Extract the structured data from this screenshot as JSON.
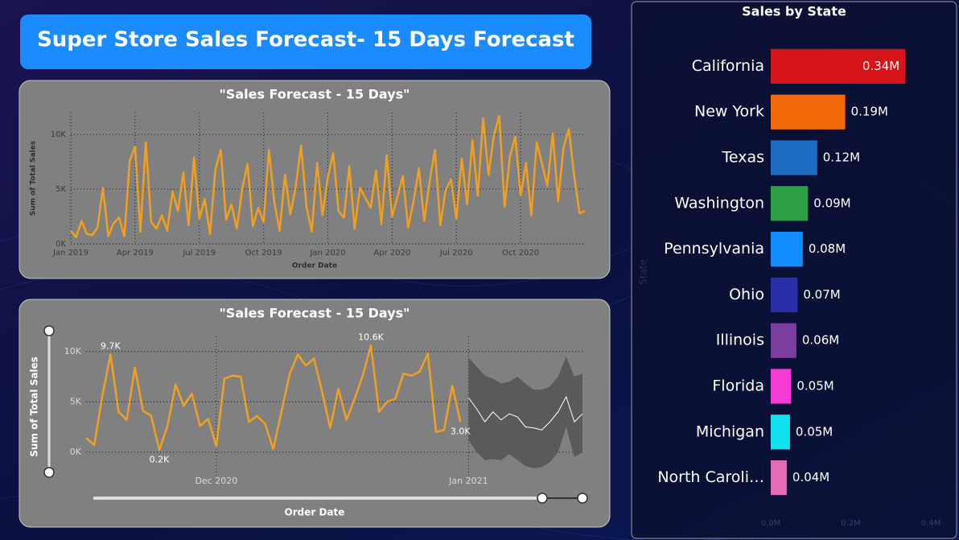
{
  "header": {
    "title": "Super Store Sales Forecast- 15 Days Forecast"
  },
  "chart_data": [
    {
      "type": "line",
      "title": "\"Sales Forecast - 15 Days\"",
      "xlabel": "Order Date",
      "ylabel": "Sum of Total Sales",
      "grid": true,
      "xlim": [
        0,
        24
      ],
      "ylim": [
        0,
        12000
      ],
      "xticks": [
        {
          "value": 0,
          "label": "Jan 2019"
        },
        {
          "value": 3,
          "label": "Apr 2019"
        },
        {
          "value": 6,
          "label": "Jul 2019"
        },
        {
          "value": 9,
          "label": "Oct 2019"
        },
        {
          "value": 12,
          "label": "Jan 2020"
        },
        {
          "value": 15,
          "label": "Apr 2020"
        },
        {
          "value": 18,
          "label": "Jul 2020"
        },
        {
          "value": 21,
          "label": "Oct 2020"
        }
      ],
      "yticks": [
        {
          "value": 0,
          "label": "0K"
        },
        {
          "value": 5000,
          "label": "5K"
        },
        {
          "value": 10000,
          "label": "10K"
        }
      ],
      "x": [
        0,
        0.25,
        0.5,
        0.75,
        1,
        1.25,
        1.5,
        1.75,
        2,
        2.25,
        2.5,
        2.75,
        3,
        3.25,
        3.5,
        3.75,
        4,
        4.25,
        4.5,
        4.75,
        5,
        5.25,
        5.5,
        5.75,
        6,
        6.25,
        6.5,
        6.75,
        7,
        7.25,
        7.5,
        7.75,
        8,
        8.25,
        8.5,
        8.75,
        9,
        9.25,
        9.5,
        9.75,
        10,
        10.25,
        10.5,
        10.75,
        11,
        11.25,
        11.5,
        11.75,
        12,
        12.25,
        12.5,
        12.75,
        13,
        13.25,
        13.5,
        13.75,
        14,
        14.25,
        14.5,
        14.75,
        15,
        15.25,
        15.5,
        15.75,
        16,
        16.25,
        16.5,
        16.75,
        17,
        17.25,
        17.5,
        17.75,
        18,
        18.25,
        18.5,
        18.75,
        19,
        19.25,
        19.5,
        19.75,
        20,
        20.25,
        20.5,
        20.75,
        21,
        21.25,
        21.5,
        21.75,
        22,
        22.25,
        22.5,
        22.75,
        23,
        23.25,
        23.5,
        23.75,
        24
      ],
      "series": [
        {
          "color": "#f0a020",
          "values": [
            1200,
            600,
            2100,
            900,
            800,
            1500,
            5100,
            700,
            1900,
            2400,
            700,
            7600,
            8900,
            1100,
            9300,
            2000,
            1400,
            2600,
            1200,
            4800,
            3000,
            6500,
            1700,
            7900,
            2300,
            4100,
            900,
            6800,
            8600,
            2200,
            3600,
            1400,
            5000,
            7300,
            1600,
            3300,
            2000,
            8600,
            3800,
            1200,
            6300,
            2700,
            5200,
            9000,
            3400,
            1100,
            7400,
            2600,
            6100,
            8300,
            3000,
            2400,
            7100,
            1400,
            5100,
            4200,
            3300,
            6700,
            1800,
            8100,
            2500,
            4300,
            6200,
            1500,
            3900,
            6900,
            2100,
            5700,
            8600,
            1700,
            4900,
            5900,
            2300,
            7800,
            3600,
            9500,
            4400,
            11500,
            6300,
            9900,
            11700,
            3400,
            8000,
            9800,
            4400,
            7400,
            2600,
            9300,
            7300,
            5300,
            10100,
            3900,
            8800,
            10500,
            6200,
            2800,
            3000
          ]
        }
      ]
    },
    {
      "type": "line",
      "title": "\"Sales Forecast - 15 Days\"",
      "xlabel": "Order Date",
      "ylabel": "Sum of Total Sales",
      "grid": true,
      "xlim": [
        -16,
        45
      ],
      "ylim": [
        -2500,
        11500
      ],
      "xticks": [
        {
          "value": 0,
          "label": "Dec 2020"
        },
        {
          "value": 31,
          "label": "Jan 2021"
        }
      ],
      "yticks": [
        {
          "value": 0,
          "label": "0K"
        },
        {
          "value": 5000,
          "label": "5K"
        },
        {
          "value": 10000,
          "label": "10K"
        }
      ],
      "series": [
        {
          "color": "#555555",
          "x": [
            31,
            32,
            33,
            34,
            35,
            36,
            37,
            38,
            39,
            40,
            41,
            42,
            43,
            44,
            45
          ],
          "upper": [
            9400,
            8500,
            7600,
            7300,
            6800,
            7000,
            7500,
            6800,
            6200,
            6200,
            6500,
            7500,
            9500,
            7500,
            7800
          ],
          "lower": [
            1200,
            0,
            -800,
            -700,
            -800,
            -200,
            -800,
            -1400,
            -1600,
            -1500,
            -1000,
            0,
            2500,
            -500,
            0
          ]
        },
        {
          "color": "#f0a020",
          "x": [
            -16,
            -15,
            -14,
            -13,
            -12,
            -11,
            -10,
            -9,
            -8,
            -7,
            -6,
            -5,
            -4,
            -3,
            -2,
            -1,
            0,
            1,
            2,
            3,
            4,
            5,
            6,
            7,
            8,
            9,
            10,
            11,
            12,
            13,
            14,
            15,
            16,
            17,
            18,
            19,
            20,
            21,
            22,
            23,
            24,
            25,
            26,
            27,
            28,
            29,
            30
          ],
          "values": [
            1400,
            700,
            5600,
            9700,
            4000,
            3200,
            8400,
            4100,
            3600,
            200,
            2600,
            6700,
            4600,
            5800,
            2600,
            3300,
            600,
            7300,
            7600,
            7500,
            3000,
            3600,
            2800,
            300,
            4000,
            7700,
            9700,
            8600,
            9300,
            6000,
            2400,
            6300,
            3200,
            5300,
            7600,
            10600,
            4000,
            5000,
            5300,
            7800,
            7600,
            8000,
            9800,
            2000,
            2200,
            6600,
            3000
          ],
          "value_labels": [
            null,
            null,
            null,
            "9.7K",
            null,
            null,
            null,
            null,
            null,
            "0.2K",
            null,
            null,
            null,
            null,
            null,
            null,
            null,
            null,
            null,
            null,
            null,
            null,
            null,
            null,
            null,
            null,
            null,
            null,
            null,
            null,
            null,
            null,
            null,
            null,
            null,
            "10.6K",
            null,
            null,
            null,
            null,
            null,
            null,
            null,
            null,
            null,
            null,
            "3.0K"
          ]
        },
        {
          "color": "#ffffff",
          "x": [
            31,
            32,
            33,
            34,
            35,
            36,
            37,
            38,
            39,
            40,
            41,
            42,
            43,
            44,
            45
          ],
          "values": [
            5400,
            4300,
            3000,
            4000,
            3200,
            3800,
            3500,
            2500,
            2400,
            2200,
            3000,
            4000,
            5500,
            3000,
            3800
          ]
        }
      ]
    },
    {
      "type": "bar",
      "orientation": "horizontal",
      "title": "Sales by State",
      "ylabel": "State",
      "categories": [
        "California",
        "New York",
        "Texas",
        "Washington",
        "Pennsylvania",
        "Ohio",
        "Illinois",
        "Florida",
        "Michigan",
        "North Caroli…"
      ],
      "values": [
        336000,
        186000,
        116000,
        93000,
        80000,
        67000,
        64000,
        51000,
        48000,
        40000
      ],
      "value_labels": [
        "0.34M",
        "0.19M",
        "0.12M",
        "0.09M",
        "0.08M",
        "0.07M",
        "0.06M",
        "0.05M",
        "0.05M",
        "0.04M"
      ],
      "colors": [
        "#d7131a",
        "#f26a07",
        "#1c6cc6",
        "#2ea043",
        "#118dff",
        "#2a2fa8",
        "#7b3da0",
        "#f53ad6",
        "#12e2f0",
        "#e66bb5"
      ],
      "xlim": [
        0,
        450000
      ],
      "xticks": [
        {
          "value": 0,
          "label": "0.0M"
        },
        {
          "value": 200000,
          "label": "0.2M"
        },
        {
          "value": 400000,
          "label": "0.4M"
        }
      ]
    }
  ]
}
